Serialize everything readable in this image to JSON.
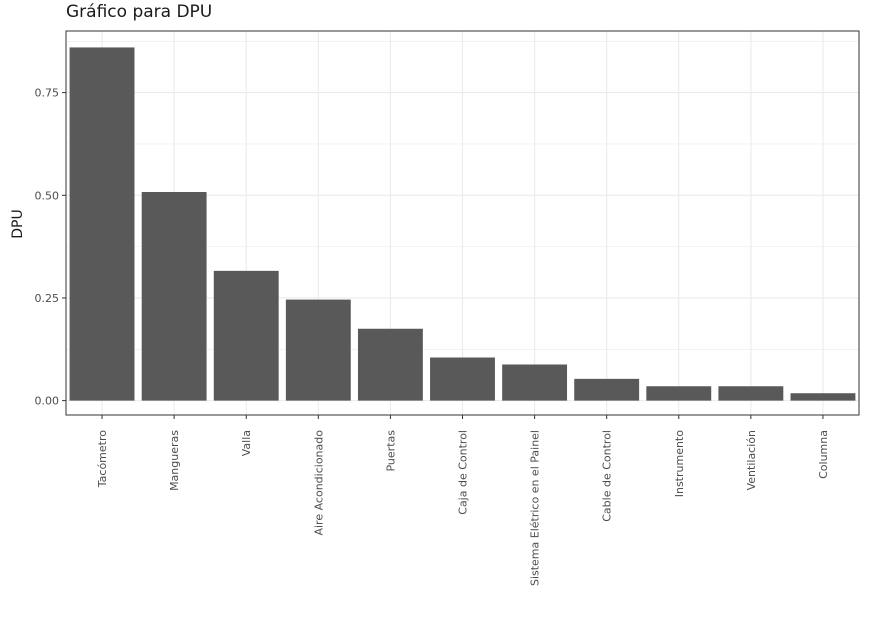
{
  "chart_data": {
    "type": "bar",
    "title": "Gráfico para DPU",
    "xlabel": "",
    "ylabel": "DPU",
    "categories": [
      "Tacómetro",
      "Mangueras",
      "Valla",
      "Aire Acondicionado",
      "Puertas",
      "Caja de Control",
      "Sistema Elétrico en el Painel",
      "Cable de Control",
      "Instrumento",
      "Ventilación",
      "Columna"
    ],
    "values": [
      0.86,
      0.508,
      0.316,
      0.246,
      0.175,
      0.105,
      0.088,
      0.053,
      0.035,
      0.035,
      0.018
    ],
    "ylim": [
      -0.035,
      0.9
    ],
    "yticks": [
      0.0,
      0.25,
      0.5,
      0.75
    ],
    "ytick_labels": [
      "0.00",
      "0.25",
      "0.50",
      "0.75"
    ],
    "grid": true,
    "bar_color": "#595959",
    "grid_color": "#ebebeb",
    "panel_border_color": "#333333"
  }
}
